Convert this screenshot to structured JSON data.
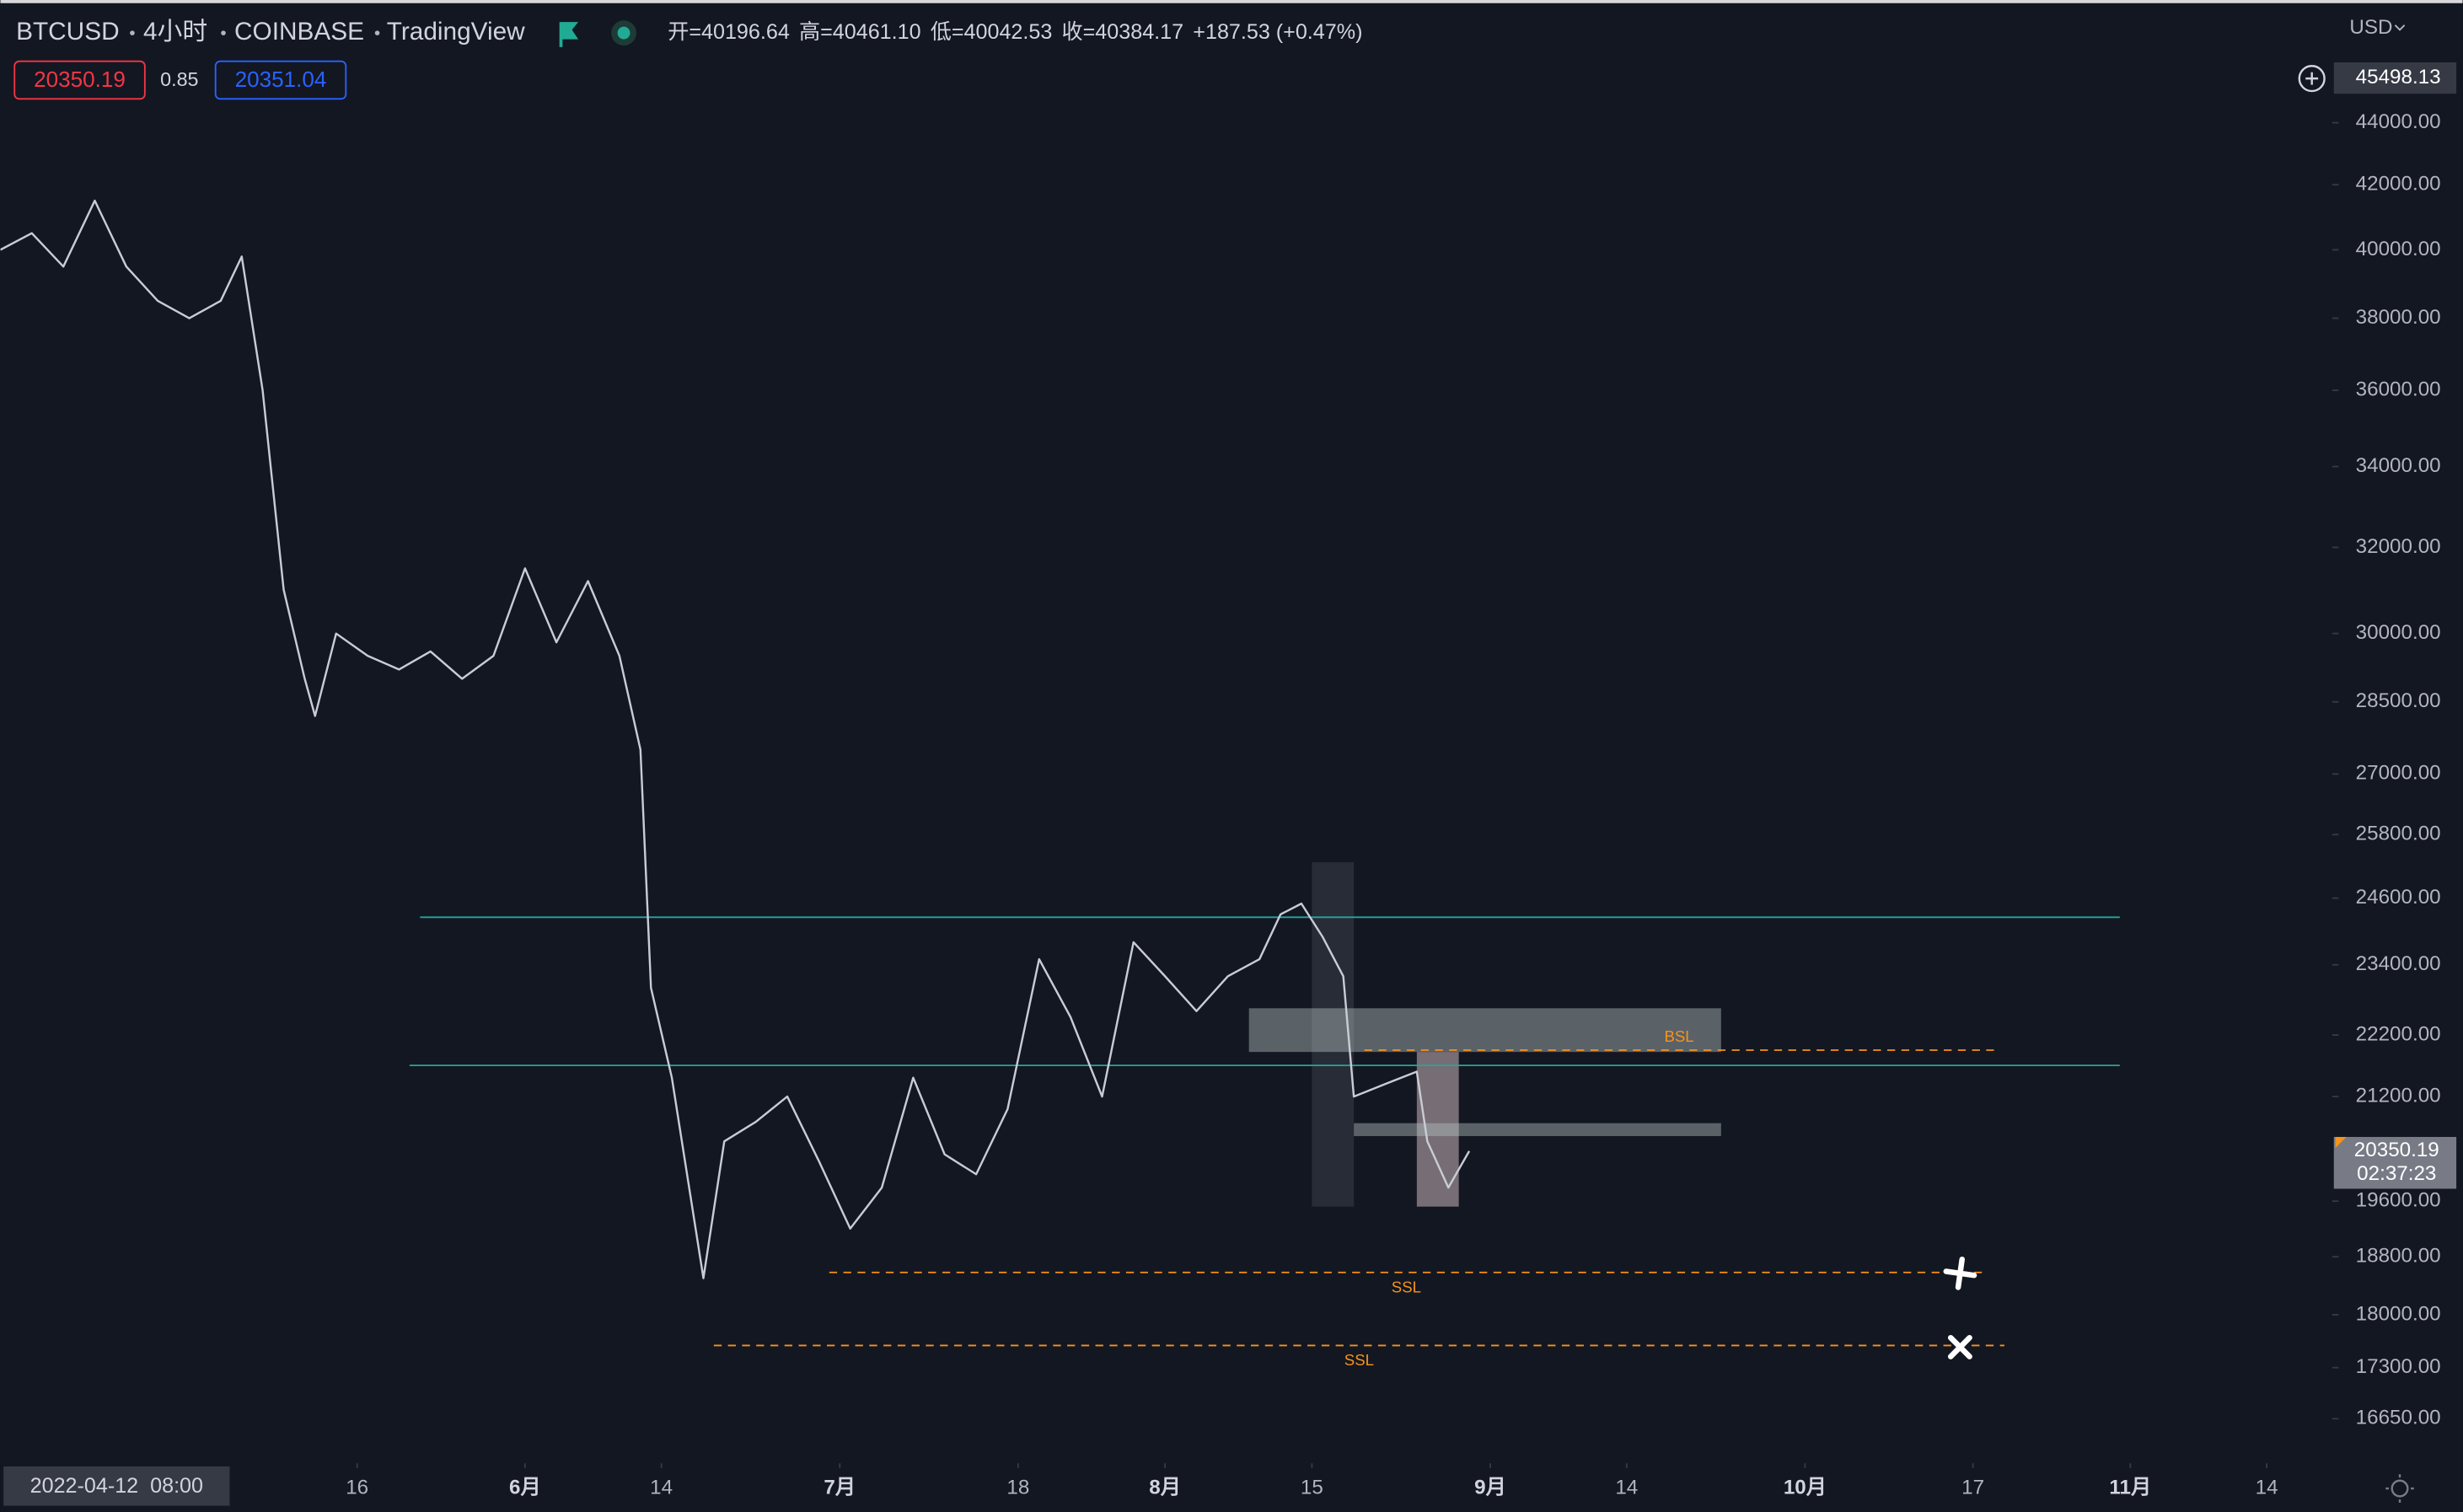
{
  "chart_data": {
    "type": "line",
    "symbol": "BTCUSD",
    "interval": "4小时",
    "exchange": "COINBASE",
    "source": "TradingView",
    "ohlc": [
      "开=40196.64",
      "高=40461.10",
      "低=40042.53",
      "收=40384.17",
      "+187.53 (+0.47%)"
    ],
    "sell_price": "20350.19",
    "spread": "0.85",
    "buy_price": "20351.04",
    "currency": "USD",
    "crosshair_price": 45498.13,
    "crosshair_date": "2022-04-12  08:00",
    "last_price": 20350.19,
    "countdown": "02:37:23",
    "log_scale": true,
    "xlim": [
      "2022-04-12",
      "2022-11-21"
    ],
    "ylim": [
      16140,
      48240
    ],
    "xticks": [
      {
        "value": "2022-05-16",
        "label": "16"
      },
      {
        "value": "2022-06-01",
        "label": "6月"
      },
      {
        "value": "2022-06-14",
        "label": "14"
      },
      {
        "value": "2022-07-01",
        "label": "7月"
      },
      {
        "value": "2022-07-18",
        "label": "18"
      },
      {
        "value": "2022-08-01",
        "label": "8月"
      },
      {
        "value": "2022-08-15",
        "label": "15"
      },
      {
        "value": "2022-09-01",
        "label": "9月"
      },
      {
        "value": "2022-09-14",
        "label": "14"
      },
      {
        "value": "2022-10-01",
        "label": "10月"
      },
      {
        "value": "2022-10-17",
        "label": "17"
      },
      {
        "value": "2022-11-01",
        "label": "11月"
      },
      {
        "value": "2022-11-14",
        "label": "14"
      }
    ],
    "yticks": [
      {
        "value": 44000,
        "label": "44000.00"
      },
      {
        "value": 42000,
        "label": "42000.00"
      },
      {
        "value": 40000,
        "label": "40000.00"
      },
      {
        "value": 38000,
        "label": "38000.00"
      },
      {
        "value": 36000,
        "label": "36000.00"
      },
      {
        "value": 34000,
        "label": "34000.00"
      },
      {
        "value": 32000,
        "label": "32000.00"
      },
      {
        "value": 30000,
        "label": "30000.00"
      },
      {
        "value": 28500,
        "label": "28500.00"
      },
      {
        "value": 27000,
        "label": "27000.00"
      },
      {
        "value": 25800,
        "label": "25800.00"
      },
      {
        "value": 24600,
        "label": "24600.00"
      },
      {
        "value": 23400,
        "label": "23400.00"
      },
      {
        "value": 22200,
        "label": "22200.00"
      },
      {
        "value": 21200,
        "label": "21200.00"
      },
      {
        "value": 19600,
        "label": "19600.00"
      },
      {
        "value": 18800,
        "label": "18800.00"
      },
      {
        "value": 18000,
        "label": "18000.00"
      },
      {
        "value": 17300,
        "label": "17300.00"
      },
      {
        "value": 16650,
        "label": "16650.00"
      }
    ],
    "x": [
      "2022-04-12",
      "2022-04-15",
      "2022-04-18",
      "2022-04-21",
      "2022-04-24",
      "2022-04-27",
      "2022-04-30",
      "2022-05-03",
      "2022-05-05",
      "2022-05-07",
      "2022-05-09",
      "2022-05-11",
      "2022-05-12",
      "2022-05-14",
      "2022-05-17",
      "2022-05-20",
      "2022-05-23",
      "2022-05-26",
      "2022-05-29",
      "2022-06-01",
      "2022-06-04",
      "2022-06-07",
      "2022-06-10",
      "2022-06-12",
      "2022-06-13",
      "2022-06-15",
      "2022-06-18",
      "2022-06-20",
      "2022-06-23",
      "2022-06-26",
      "2022-06-29",
      "2022-07-02",
      "2022-07-05",
      "2022-07-08",
      "2022-07-11",
      "2022-07-14",
      "2022-07-17",
      "2022-07-20",
      "2022-07-23",
      "2022-07-26",
      "2022-07-29",
      "2022-08-01",
      "2022-08-04",
      "2022-08-07",
      "2022-08-10",
      "2022-08-12",
      "2022-08-14",
      "2022-08-16",
      "2022-08-18",
      "2022-08-19",
      "2022-08-22",
      "2022-08-25",
      "2022-08-26",
      "2022-08-28",
      "2022-08-30"
    ],
    "series": [
      {
        "name": "BTCUSD",
        "color": "#c9ccd4",
        "values": [
          40000,
          40500,
          39500,
          41500,
          39500,
          38500,
          38000,
          38500,
          39800,
          36000,
          31000,
          29000,
          28200,
          30000,
          29500,
          29200,
          29600,
          29000,
          29500,
          31500,
          29800,
          31200,
          29500,
          27500,
          23000,
          21500,
          18500,
          20500,
          20800,
          21200,
          20200,
          19200,
          19800,
          21500,
          20300,
          20000,
          21000,
          23500,
          22500,
          21200,
          23800,
          23200,
          22600,
          23200,
          23500,
          24300,
          24500,
          23900,
          23200,
          21200,
          21400,
          21600,
          20500,
          19800,
          20350
        ]
      }
    ],
    "levels": [
      {
        "price": 24250,
        "start": "2022-05-22",
        "end": "2022-10-31",
        "color": "#26a69a",
        "dashed": false
      },
      {
        "price": 21700,
        "start": "2022-05-21",
        "end": "2022-10-31",
        "color": "#26a69a",
        "dashed": false
      },
      {
        "price": 21950,
        "start": "2022-08-20",
        "end": "2022-10-19",
        "color": "#f7931a",
        "dashed": true,
        "label": "BSL"
      },
      {
        "price": 18580,
        "start": "2022-06-30",
        "end": "2022-10-18",
        "color": "#f7931a",
        "dashed": true,
        "label": "SSL"
      },
      {
        "price": 17590,
        "start": "2022-06-19",
        "end": "2022-10-20",
        "color": "#f7931a",
        "dashed": true,
        "label": "SSL"
      }
    ],
    "zones": [
      {
        "start": "2022-08-15",
        "end": "2022-08-19",
        "low": 19520,
        "high": 25270,
        "color": "rgba(120,123,134,0.22)"
      },
      {
        "start": "2022-08-09",
        "end": "2022-09-23",
        "low": 21920,
        "high": 22650,
        "color": "rgba(178,190,190,0.45)"
      },
      {
        "start": "2022-08-25",
        "end": "2022-08-29",
        "low": 19520,
        "high": 21920,
        "color": "rgba(200,180,185,0.55)"
      },
      {
        "start": "2022-08-19",
        "end": "2022-09-23",
        "low": 20580,
        "high": 20780,
        "color": "rgba(178,190,190,0.45)"
      }
    ]
  }
}
